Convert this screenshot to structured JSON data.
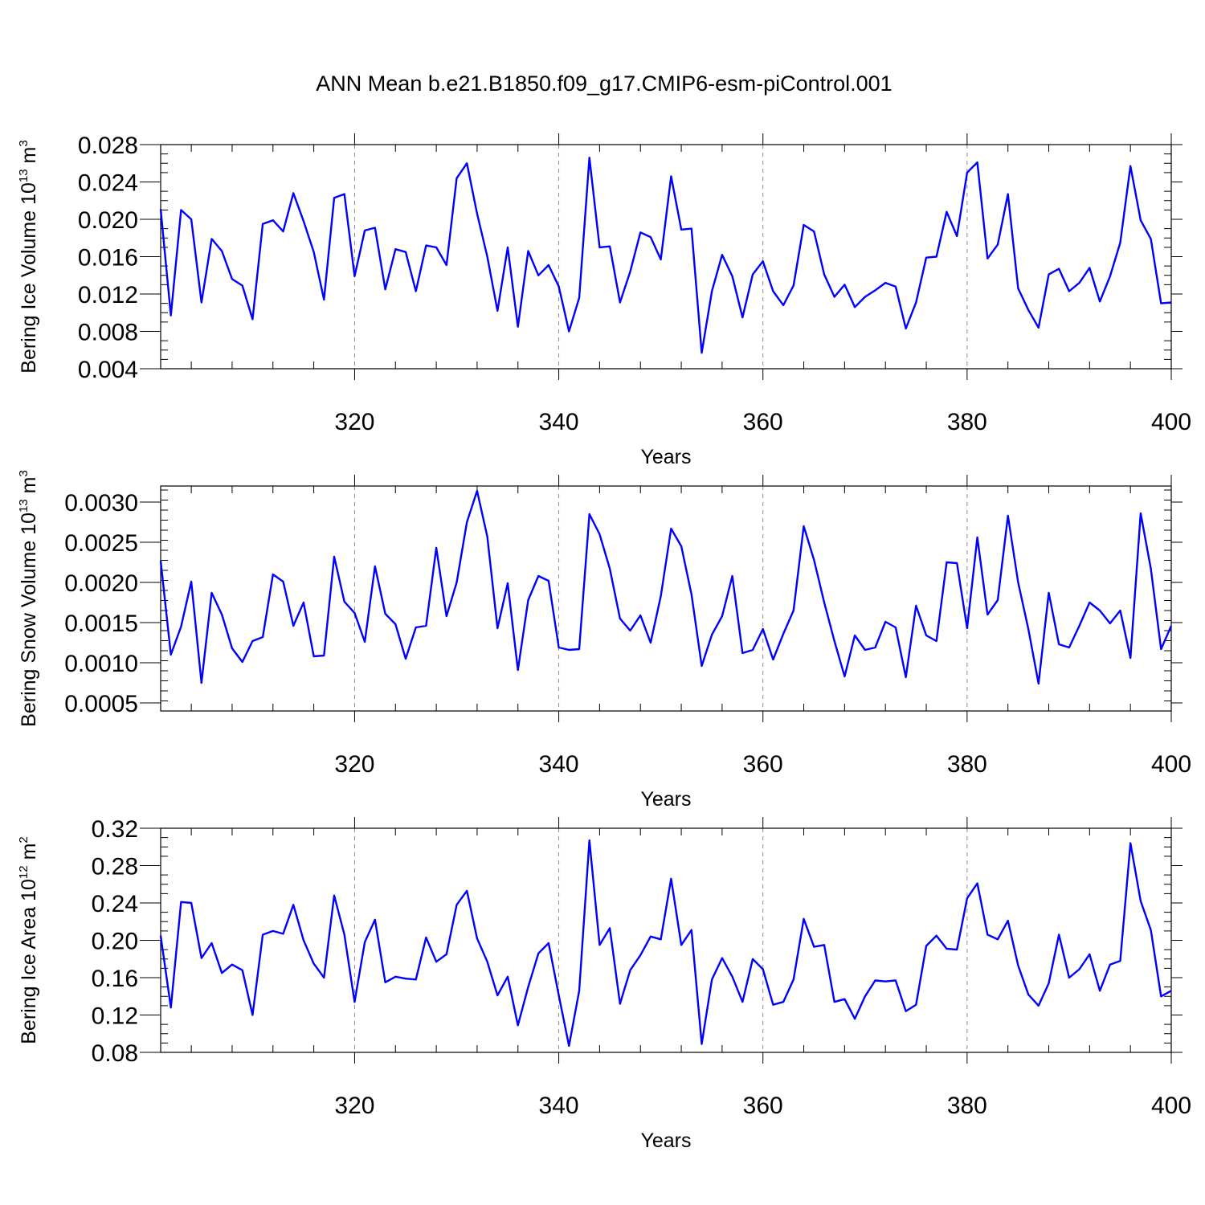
{
  "title": "ANN Mean b.e21.B1850.f09_g17.CMIP6-esm-piControl.001",
  "colors": {
    "series": "#0000ff",
    "grid": "#8a8a8a",
    "axes": "#000000"
  },
  "chart_data": [
    {
      "type": "line",
      "xlabel": "Years",
      "ylabel": {
        "text": "Bering Ice Volume 10",
        "sup": "13",
        "unit": " m",
        "unit_sup": "3"
      },
      "xlim": [
        301,
        400
      ],
      "ylim": [
        0.004,
        0.028
      ],
      "xticks": [
        "320",
        "340",
        "360",
        "380",
        "400"
      ],
      "xtick_values": [
        320,
        340,
        360,
        380,
        400
      ],
      "yticks": [
        "0.004",
        "0.008",
        "0.012",
        "0.016",
        "0.020",
        "0.024",
        "0.028"
      ],
      "ytick_values": [
        0.004,
        0.008,
        0.012,
        0.016,
        0.02,
        0.024,
        0.028
      ],
      "grid": "dashed vertical lines at 320, 340, 360, 380",
      "x": [
        301,
        302,
        303,
        304,
        305,
        306,
        307,
        308,
        309,
        310,
        311,
        312,
        313,
        314,
        315,
        316,
        317,
        318,
        319,
        320,
        321,
        322,
        323,
        324,
        325,
        326,
        327,
        328,
        329,
        330,
        331,
        332,
        333,
        334,
        335,
        336,
        337,
        338,
        339,
        340,
        341,
        342,
        343,
        344,
        345,
        346,
        347,
        348,
        349,
        350,
        351,
        352,
        353,
        354,
        355,
        356,
        357,
        358,
        359,
        360,
        361,
        362,
        363,
        364,
        365,
        366,
        367,
        368,
        369,
        370,
        371,
        372,
        373,
        374,
        375,
        376,
        377,
        378,
        379,
        380,
        381,
        382,
        383,
        384,
        385,
        386,
        387,
        388,
        389,
        390,
        391,
        392,
        393,
        394,
        395,
        396,
        397,
        398,
        399,
        400
      ],
      "values": [
        0.0211,
        0.0097,
        0.021,
        0.02,
        0.0111,
        0.0179,
        0.0166,
        0.0136,
        0.0129,
        0.0093,
        0.0195,
        0.0199,
        0.0187,
        0.0228,
        0.0198,
        0.0165,
        0.0114,
        0.0223,
        0.0227,
        0.0139,
        0.0188,
        0.0191,
        0.0125,
        0.0168,
        0.0165,
        0.0123,
        0.0172,
        0.017,
        0.0151,
        0.0244,
        0.026,
        0.0206,
        0.016,
        0.0102,
        0.017,
        0.0085,
        0.0166,
        0.014,
        0.0151,
        0.0128,
        0.008,
        0.0116,
        0.0266,
        0.017,
        0.0171,
        0.0111,
        0.0144,
        0.0186,
        0.0181,
        0.0157,
        0.0246,
        0.0189,
        0.019,
        0.0057,
        0.0123,
        0.0162,
        0.0139,
        0.0095,
        0.0141,
        0.0155,
        0.0123,
        0.0108,
        0.0129,
        0.0194,
        0.0187,
        0.0141,
        0.0117,
        0.013,
        0.0106,
        0.0117,
        0.0124,
        0.0132,
        0.0128,
        0.0083,
        0.0111,
        0.0159,
        0.016,
        0.0208,
        0.0182,
        0.025,
        0.0261,
        0.0158,
        0.0173,
        0.0227,
        0.0126,
        0.0103,
        0.0084,
        0.0141,
        0.0147,
        0.0123,
        0.0132,
        0.0148,
        0.0112,
        0.0139,
        0.0175,
        0.0257,
        0.0199,
        0.0179,
        0.011,
        0.0111
      ]
    },
    {
      "type": "line",
      "xlabel": "Years",
      "ylabel": {
        "text": "Bering Snow Volume 10",
        "sup": "13",
        "unit": " m",
        "unit_sup": "3"
      },
      "xlim": [
        301,
        400
      ],
      "ylim": [
        0.0004,
        0.0032
      ],
      "xticks": [
        "320",
        "340",
        "360",
        "380",
        "400"
      ],
      "xtick_values": [
        320,
        340,
        360,
        380,
        400
      ],
      "yticks": [
        "0.0005",
        "0.0010",
        "0.0015",
        "0.0020",
        "0.0025",
        "0.0030"
      ],
      "ytick_values": [
        0.0005,
        0.001,
        0.0015,
        0.002,
        0.0025,
        0.003
      ],
      "grid": "dashed vertical lines at 320, 340, 360, 380",
      "x": [
        301,
        302,
        303,
        304,
        305,
        306,
        307,
        308,
        309,
        310,
        311,
        312,
        313,
        314,
        315,
        316,
        317,
        318,
        319,
        320,
        321,
        322,
        323,
        324,
        325,
        326,
        327,
        328,
        329,
        330,
        331,
        332,
        333,
        334,
        335,
        336,
        337,
        338,
        339,
        340,
        341,
        342,
        343,
        344,
        345,
        346,
        347,
        348,
        349,
        350,
        351,
        352,
        353,
        354,
        355,
        356,
        357,
        358,
        359,
        360,
        361,
        362,
        363,
        364,
        365,
        366,
        367,
        368,
        369,
        370,
        371,
        372,
        373,
        374,
        375,
        376,
        377,
        378,
        379,
        380,
        381,
        382,
        383,
        384,
        385,
        386,
        387,
        388,
        389,
        390,
        391,
        392,
        393,
        394,
        395,
        396,
        397,
        398,
        399,
        400
      ],
      "values": [
        0.00227,
        0.0011,
        0.00145,
        0.00201,
        0.00075,
        0.00187,
        0.0016,
        0.00118,
        0.00101,
        0.00127,
        0.00132,
        0.0021,
        0.00201,
        0.00146,
        0.00175,
        0.00108,
        0.00109,
        0.00232,
        0.00176,
        0.00162,
        0.00126,
        0.0022,
        0.00161,
        0.00148,
        0.00105,
        0.00144,
        0.00146,
        0.00243,
        0.00158,
        0.002,
        0.00275,
        0.00314,
        0.00257,
        0.00143,
        0.00199,
        0.00091,
        0.00178,
        0.00208,
        0.00202,
        0.00119,
        0.00116,
        0.00117,
        0.00285,
        0.0026,
        0.00217,
        0.00155,
        0.0014,
        0.00159,
        0.00125,
        0.00183,
        0.00267,
        0.00245,
        0.00185,
        0.00096,
        0.00135,
        0.00158,
        0.00208,
        0.00112,
        0.00116,
        0.00142,
        0.00104,
        0.00136,
        0.00165,
        0.0027,
        0.00228,
        0.00175,
        0.00127,
        0.00083,
        0.00134,
        0.00116,
        0.00119,
        0.00151,
        0.00144,
        0.00082,
        0.00171,
        0.00134,
        0.00127,
        0.00225,
        0.00224,
        0.00143,
        0.00256,
        0.0016,
        0.00178,
        0.00283,
        0.002,
        0.00142,
        0.00074,
        0.00187,
        0.00123,
        0.00119,
        0.00146,
        0.00175,
        0.00165,
        0.00149,
        0.00165,
        0.00106,
        0.00286,
        0.00217,
        0.00117,
        0.00146
      ]
    },
    {
      "type": "line",
      "xlabel": "Years",
      "ylabel": {
        "text": "Bering Ice Area 10",
        "sup": "12",
        "unit": " m",
        "unit_sup": "2"
      },
      "xlim": [
        301,
        400
      ],
      "ylim": [
        0.08,
        0.32
      ],
      "xticks": [
        "320",
        "340",
        "360",
        "380",
        "400"
      ],
      "xtick_values": [
        320,
        340,
        360,
        380,
        400
      ],
      "yticks": [
        "0.08",
        "0.12",
        "0.16",
        "0.20",
        "0.24",
        "0.28",
        "0.32"
      ],
      "ytick_values": [
        0.08,
        0.12,
        0.16,
        0.2,
        0.24,
        0.28,
        0.32
      ],
      "grid": "dashed vertical lines at 320, 340, 360, 380",
      "x": [
        301,
        302,
        303,
        304,
        305,
        306,
        307,
        308,
        309,
        310,
        311,
        312,
        313,
        314,
        315,
        316,
        317,
        318,
        319,
        320,
        321,
        322,
        323,
        324,
        325,
        326,
        327,
        328,
        329,
        330,
        331,
        332,
        333,
        334,
        335,
        336,
        337,
        338,
        339,
        340,
        341,
        342,
        343,
        344,
        345,
        346,
        347,
        348,
        349,
        350,
        351,
        352,
        353,
        354,
        355,
        356,
        357,
        358,
        359,
        360,
        361,
        362,
        363,
        364,
        365,
        366,
        367,
        368,
        369,
        370,
        371,
        372,
        373,
        374,
        375,
        376,
        377,
        378,
        379,
        380,
        381,
        382,
        383,
        384,
        385,
        386,
        387,
        388,
        389,
        390,
        391,
        392,
        393,
        394,
        395,
        396,
        397,
        398,
        399,
        400
      ],
      "values": [
        0.205,
        0.128,
        0.241,
        0.24,
        0.181,
        0.197,
        0.165,
        0.174,
        0.168,
        0.12,
        0.206,
        0.21,
        0.207,
        0.238,
        0.2,
        0.175,
        0.16,
        0.248,
        0.206,
        0.134,
        0.198,
        0.222,
        0.155,
        0.161,
        0.159,
        0.158,
        0.203,
        0.177,
        0.185,
        0.238,
        0.253,
        0.202,
        0.177,
        0.141,
        0.161,
        0.109,
        0.15,
        0.186,
        0.197,
        0.141,
        0.087,
        0.146,
        0.307,
        0.195,
        0.213,
        0.132,
        0.168,
        0.184,
        0.204,
        0.201,
        0.266,
        0.195,
        0.211,
        0.089,
        0.158,
        0.181,
        0.161,
        0.134,
        0.18,
        0.169,
        0.131,
        0.134,
        0.158,
        0.223,
        0.193,
        0.195,
        0.134,
        0.137,
        0.116,
        0.14,
        0.157,
        0.156,
        0.157,
        0.124,
        0.131,
        0.194,
        0.205,
        0.191,
        0.19,
        0.245,
        0.261,
        0.206,
        0.201,
        0.221,
        0.173,
        0.142,
        0.13,
        0.154,
        0.206,
        0.16,
        0.169,
        0.185,
        0.146,
        0.174,
        0.178,
        0.304,
        0.242,
        0.211,
        0.14,
        0.146
      ]
    }
  ]
}
